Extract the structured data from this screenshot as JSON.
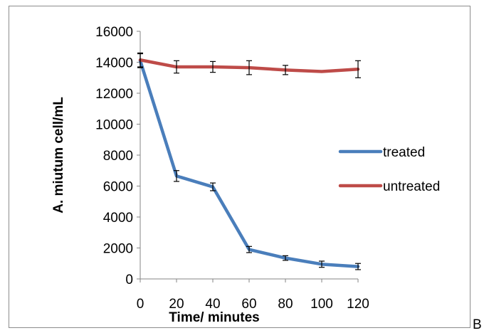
{
  "chart_data": {
    "type": "line",
    "x": [
      0,
      20,
      40,
      60,
      80,
      100,
      120
    ],
    "xlabel": "Time/ minutes",
    "ylabel": "A. miutum cell/mL",
    "xlim": [
      0,
      120
    ],
    "ylim": [
      0,
      16000
    ],
    "xticks": [
      0,
      20,
      40,
      60,
      80,
      100,
      120
    ],
    "yticks": [
      0,
      2000,
      4000,
      6000,
      8000,
      10000,
      12000,
      14000,
      16000
    ],
    "grid": false,
    "legend_position": "right",
    "series": [
      {
        "name": "treated",
        "color": "#4a7ebb",
        "values": [
          14100,
          6650,
          5950,
          1900,
          1350,
          950,
          800
        ],
        "errors": [
          450,
          350,
          250,
          200,
          150,
          200,
          200
        ]
      },
      {
        "name": "untreated",
        "color": "#be4b48",
        "values": [
          14150,
          13700,
          13700,
          13650,
          13500,
          13400,
          13550
        ],
        "errors": [
          450,
          400,
          350,
          450,
          300,
          0,
          550
        ]
      }
    ]
  },
  "trailing_text": "B"
}
